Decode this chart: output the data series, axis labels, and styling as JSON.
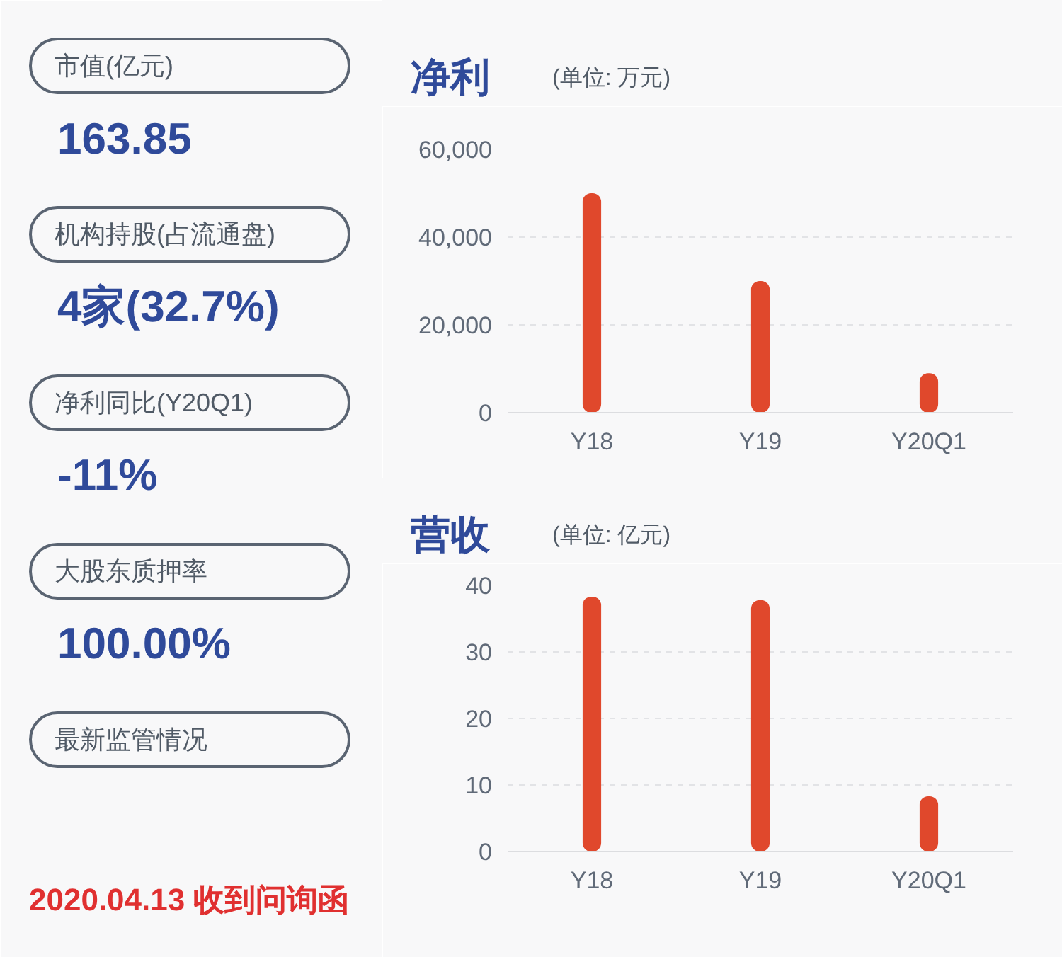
{
  "chart_data": [
    {
      "type": "other",
      "annotations": [
        "市值(亿元)",
        "163.85",
        "机构持股(占流通盘)",
        "4家(32.7%)",
        "净利同比(Y20Q1)",
        "-11%",
        "大股东质押率",
        "100.00%",
        "最新监管情况",
        "2020.04.13 收到问询函"
      ]
    },
    {
      "type": "bar",
      "title": "净利",
      "subtitle": "(单位: 万元)",
      "categories": [
        "Y18",
        "Y19",
        "Y20Q1"
      ],
      "values": [
        50000,
        30000,
        9000
      ],
      "color": "#e0482c",
      "ylim": [
        0,
        60000
      ],
      "yticks": [
        0,
        {
          "value": 20000,
          "label": "20,000"
        },
        {
          "value": 40000,
          "label": "40,000"
        },
        {
          "value": 60000,
          "label": "60,000"
        }
      ],
      "grid": "y"
    },
    {
      "type": "bar",
      "title": "营收",
      "subtitle": "(单位: 亿元)",
      "categories": [
        "Y18",
        "Y19",
        "Y20Q1"
      ],
      "values": [
        38.3,
        37.8,
        8.3
      ],
      "color": "#e0482c",
      "ylim": [
        0,
        40
      ],
      "yticks": [
        0,
        10,
        20,
        30,
        40
      ],
      "grid": "y"
    }
  ]
}
